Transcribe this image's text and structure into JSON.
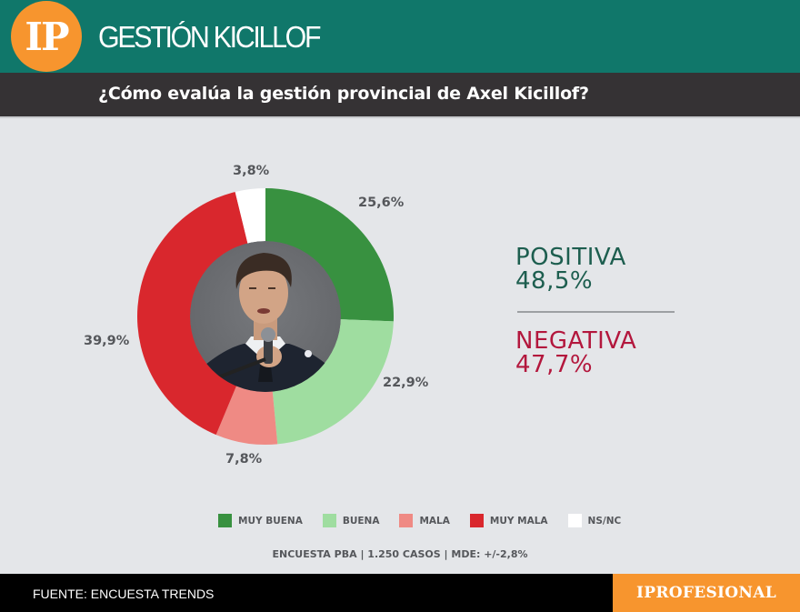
{
  "header": {
    "logo_text": "IP",
    "title": "GESTIÓN KICILLOF",
    "question": "¿Cómo evalúa la gestión provincial de Axel Kicillof?",
    "colors": {
      "bar": "#10776a",
      "subbar": "#353234",
      "logo": "#f7952e"
    }
  },
  "chart_data": {
    "type": "pie",
    "variant": "donut",
    "title": "¿Cómo evalúa la gestión provincial de Axel Kicillof?",
    "categories": [
      "MUY BUENA",
      "BUENA",
      "MALA",
      "MUY MALA",
      "NS/NC"
    ],
    "values": [
      25.6,
      22.9,
      7.8,
      39.9,
      3.8
    ],
    "labels": [
      "25,6%",
      "22,9%",
      "7,8%",
      "39,9%",
      "3,8%"
    ],
    "colors": [
      "#389140",
      "#9fdda0",
      "#ef8a84",
      "#d9272d",
      "#ffffff"
    ],
    "start_angle": "12 o'clock, clockwise",
    "center_image": "photo of Axel Kicillof speaking into a microphone",
    "legend_position": "bottom",
    "annotations": [
      {
        "label": "POSITIVA",
        "value": "48,5%"
      },
      {
        "label": "NEGATIVA",
        "value": "47,7%"
      }
    ],
    "note": "ENCUESTA PBA | 1.250 CASOS | MDE: +/-2,8%"
  },
  "summary": {
    "positive": {
      "label": "POSITIVA",
      "value": "48,5%",
      "color": "#1d5e4f"
    },
    "negative": {
      "label": "NEGATIVA",
      "value": "47,7%",
      "color": "#b3173d"
    }
  },
  "legend": [
    {
      "label": "MUY BUENA",
      "color": "#389140"
    },
    {
      "label": "BUENA",
      "color": "#9fdda0"
    },
    {
      "label": "MALA",
      "color": "#ef8a84"
    },
    {
      "label": "MUY MALA",
      "color": "#d9272d"
    },
    {
      "label": "NS/NC",
      "color": "#ffffff"
    }
  ],
  "survey_note": "ENCUESTA PBA | 1.250 CASOS | MDE: +/-2,8%",
  "footer": {
    "source": "FUENTE: ENCUESTA TRENDS",
    "brand": "IPROFESIONAL"
  }
}
